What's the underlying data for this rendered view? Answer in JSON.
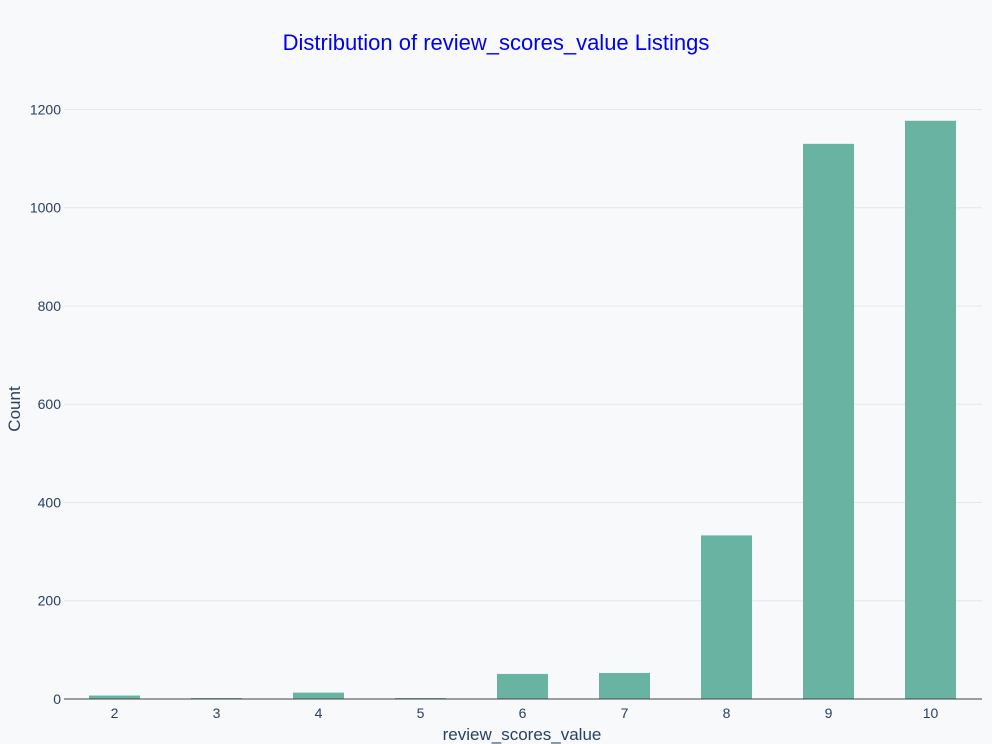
{
  "chart_data": {
    "type": "bar",
    "title": "Distribution of review_scores_value Listings",
    "xlabel": "review_scores_value",
    "ylabel": "Count",
    "categories": [
      "2",
      "3",
      "4",
      "5",
      "6",
      "7",
      "8",
      "9",
      "10"
    ],
    "values": [
      7,
      2,
      13,
      2,
      51,
      53,
      333,
      1130,
      1177
    ],
    "ylim": [
      0,
      1260
    ],
    "yticks": [
      0,
      200,
      400,
      600,
      800,
      1000,
      1200
    ],
    "grid": true,
    "legend": "none"
  },
  "colors": {
    "bar": "#69b3a2",
    "title": "#0000ee",
    "text": "#2a3f5f",
    "background": "#f7f9fb"
  }
}
